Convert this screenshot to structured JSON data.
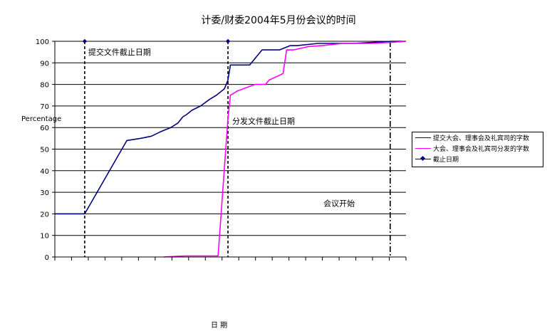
{
  "chart_data": {
    "type": "line",
    "title": "计委/财委2004年5月份会议的时间",
    "xlabel": "日 期",
    "ylabel": "Percentage",
    "ylim": [
      0,
      100
    ],
    "yticks": [
      "0",
      "10",
      "20",
      "30",
      "40",
      "50",
      "60",
      "70",
      "80",
      "90",
      "100"
    ],
    "grid": true,
    "legend_position": "right",
    "x_note": "x axis has no printed tick labels; x values are relative day positions 0-100",
    "series": [
      {
        "name": "提交大会、理事会及礼宾司的字数",
        "color": "#000080",
        "x": [
          0,
          8.5,
          20.5,
          24.5,
          27.5,
          30,
          31.5,
          33,
          35,
          36.5,
          37.5,
          39,
          41.5,
          44,
          46,
          48.3,
          49.3,
          50,
          55.5,
          59,
          64,
          67,
          69,
          75,
          85,
          96,
          100
        ],
        "values": [
          20,
          20,
          54,
          55,
          56,
          58,
          59,
          60,
          62,
          65,
          66,
          68,
          70,
          73,
          75,
          78,
          82,
          89,
          89,
          96,
          96,
          98,
          98,
          99,
          99,
          100,
          100
        ]
      },
      {
        "name": "大会、理事会及礼宾司分发的字数",
        "color": "#ff00ff",
        "x": [
          31,
          37,
          46.5,
          49.3,
          50,
          52,
          57,
          60,
          61,
          65,
          66,
          68,
          72,
          76,
          82,
          90,
          96,
          100
        ],
        "values": [
          0,
          0.5,
          0.5,
          64,
          75,
          77,
          80,
          80,
          82,
          85,
          96,
          96,
          97.5,
          98,
          99,
          99,
          99.5,
          100
        ]
      },
      {
        "name": "截止日期",
        "color": "#000080",
        "style": "dashed-vertical",
        "x": [
          8.5,
          49.3,
          95.5
        ]
      }
    ],
    "annotations": [
      {
        "text": "提交文件截止日期",
        "x": 9.5,
        "y": 95
      },
      {
        "text": "分发文件截止日期",
        "x": 50.5,
        "y": 63
      },
      {
        "text": "会议开始",
        "x": 76.5,
        "y": 25
      }
    ]
  }
}
